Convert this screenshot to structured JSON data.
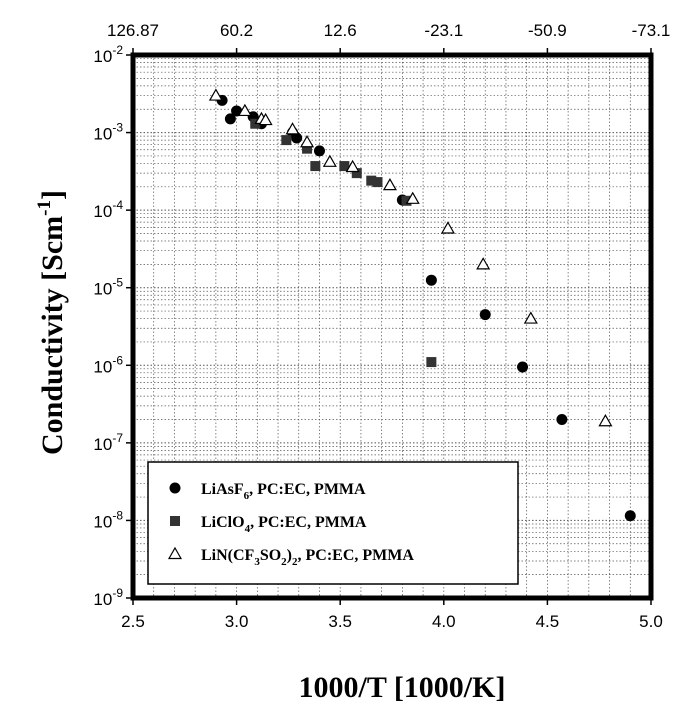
{
  "chart_data": {
    "type": "scatter",
    "xlabel": "1000/T [1000/K]",
    "ylabel_main": "Conductivity [Scm",
    "ylabel_sup": "-1",
    "ylabel_end": "]",
    "xlim": [
      2.5,
      5.0
    ],
    "ylim_log10": [
      -9,
      -2
    ],
    "yscale": "log",
    "grid": true,
    "legend_position": "bottom-left",
    "x_ticks": [
      {
        "value": 2.5,
        "label": "2.5"
      },
      {
        "value": 3.0,
        "label": "3.0"
      },
      {
        "value": 3.5,
        "label": "3.5"
      },
      {
        "value": 4.0,
        "label": "4.0"
      },
      {
        "value": 4.5,
        "label": "4.5"
      },
      {
        "value": 5.0,
        "label": "5.0"
      }
    ],
    "y_ticks": [
      {
        "exp": -2,
        "base": "10",
        "sup": "-2"
      },
      {
        "exp": -3,
        "base": "10",
        "sup": "-3"
      },
      {
        "exp": -4,
        "base": "10",
        "sup": "-4"
      },
      {
        "exp": -5,
        "base": "10",
        "sup": "-5"
      },
      {
        "exp": -6,
        "base": "10",
        "sup": "-6"
      },
      {
        "exp": -7,
        "base": "10",
        "sup": "-7"
      },
      {
        "exp": -8,
        "base": "10",
        "sup": "-8"
      },
      {
        "exp": -9,
        "base": "10",
        "sup": "-9"
      }
    ],
    "top_axis_ticks": [
      {
        "x": 2.5,
        "label": "126.87"
      },
      {
        "x": 3.0,
        "label": "60.2"
      },
      {
        "x": 3.5,
        "label": "12.6"
      },
      {
        "x": 4.0,
        "label": "-23.1"
      },
      {
        "x": 4.5,
        "label": "-50.9"
      },
      {
        "x": 5.0,
        "label": "-73.1"
      }
    ],
    "series": [
      {
        "marker": "circle",
        "legend": {
          "p1": "LiAsF",
          "s1": "6",
          "p2": ", PC:EC, PMMA",
          "s2": "",
          "p3": ""
        },
        "points": [
          [
            2.93,
            0.0026
          ],
          [
            2.97,
            0.0015
          ],
          [
            3.0,
            0.0019
          ],
          [
            3.08,
            0.0016
          ],
          [
            3.12,
            0.0013
          ],
          [
            3.27,
            0.001
          ],
          [
            3.29,
            0.00085
          ],
          [
            3.4,
            0.00058
          ],
          [
            3.8,
            0.000135
          ],
          [
            3.94,
            1.25e-05
          ],
          [
            4.2,
            4.5e-06
          ],
          [
            4.38,
            9.5e-07
          ],
          [
            4.57,
            2e-07
          ],
          [
            4.9,
            1.15e-08
          ]
        ]
      },
      {
        "marker": "square",
        "legend": {
          "p1": "LiClO",
          "s1": "4",
          "p2": ", PC:EC, PMMA",
          "s2": "",
          "p3": ""
        },
        "points": [
          [
            3.09,
            0.0013
          ],
          [
            3.24,
            0.0008
          ],
          [
            3.34,
            0.00062
          ],
          [
            3.38,
            0.00037
          ],
          [
            3.52,
            0.00037
          ],
          [
            3.58,
            0.0003
          ],
          [
            3.65,
            0.00024
          ],
          [
            3.68,
            0.00023
          ],
          [
            3.82,
            0.000132
          ],
          [
            3.94,
            1.1e-06
          ]
        ]
      },
      {
        "marker": "triangle",
        "legend": {
          "p1": "LiN(CF",
          "s1": "3",
          "p2": "SO",
          "s2": "2",
          "p3": ")",
          "s3": "2",
          "p4": ", PC:EC, PMMA"
        },
        "points": [
          [
            2.9,
            0.003
          ],
          [
            3.04,
            0.0019
          ],
          [
            3.12,
            0.0015
          ],
          [
            3.14,
            0.00145
          ],
          [
            3.27,
            0.0011
          ],
          [
            3.34,
            0.00075
          ],
          [
            3.45,
            0.00042
          ],
          [
            3.56,
            0.00036
          ],
          [
            3.74,
            0.00021
          ],
          [
            3.85,
            0.00014
          ],
          [
            4.02,
            5.8e-05
          ],
          [
            4.19,
            2e-05
          ],
          [
            4.42,
            4e-06
          ],
          [
            4.78,
            1.9e-07
          ]
        ]
      }
    ]
  }
}
